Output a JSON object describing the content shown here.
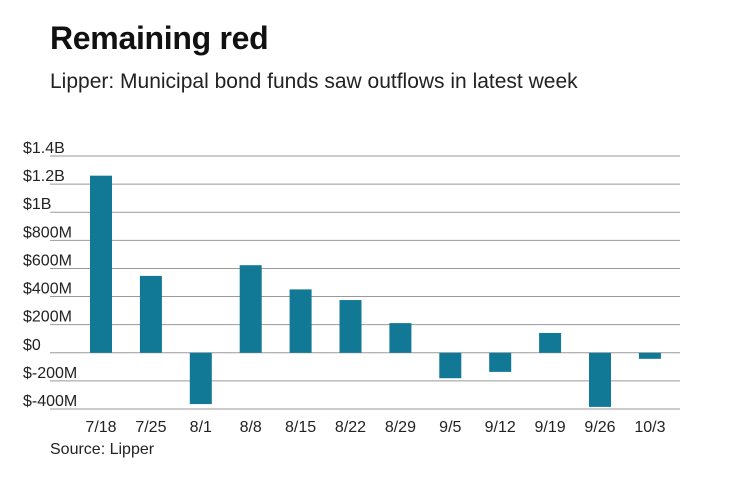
{
  "chart_data": {
    "type": "bar",
    "title": "Remaining red",
    "subtitle": "Lipper: Municipal bond funds saw outflows in latest week",
    "source": "Source: Lipper",
    "xlabel": "",
    "ylabel": "",
    "categories": [
      "7/18",
      "7/25",
      "8/1",
      "8/8",
      "8/15",
      "8/22",
      "8/29",
      "9/5",
      "9/12",
      "9/19",
      "9/26",
      "10/3"
    ],
    "values": [
      1260,
      547,
      -365,
      623,
      451,
      375,
      211,
      -181,
      -136,
      141,
      -385,
      -43
    ],
    "units": "millions of USD",
    "ylim": [
      -400,
      1400
    ],
    "yticks": [
      {
        "value": 1400,
        "label": "$1.4B"
      },
      {
        "value": 1200,
        "label": "$1.2B"
      },
      {
        "value": 1000,
        "label": "$1B"
      },
      {
        "value": 800,
        "label": "$800M"
      },
      {
        "value": 600,
        "label": "$600M"
      },
      {
        "value": 400,
        "label": "$400M"
      },
      {
        "value": 200,
        "label": "$200M"
      },
      {
        "value": 0,
        "label": "$0"
      },
      {
        "value": -200,
        "label": "$-200M"
      },
      {
        "value": -400,
        "label": "$-400M"
      }
    ],
    "grid": true,
    "legend": "none",
    "colors": {
      "bar": "#117895",
      "grid": "#9a9a9a"
    }
  }
}
